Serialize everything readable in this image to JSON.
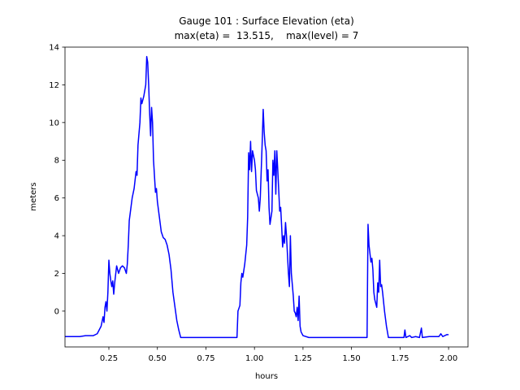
{
  "chart_data": {
    "type": "line",
    "title": "Gauge 101 : Surface Elevation (eta)",
    "subtitle": "max(eta) =  13.515,    max(level) = 7",
    "xlabel": "hours",
    "ylabel": "meters",
    "xlim": [
      0.024,
      2.1
    ],
    "ylim": [
      -1.9,
      14
    ],
    "xticks": [
      0.25,
      {
        "value": 0.5,
        "label": "0.50"
      },
      0.75,
      {
        "value": 1.0,
        "label": "1.00"
      },
      1.25,
      {
        "value": 1.5,
        "label": "1.50"
      },
      1.75,
      {
        "value": 2.0,
        "label": "2.00"
      }
    ],
    "yticks": [
      0,
      2,
      4,
      6,
      8,
      10,
      12,
      14
    ],
    "grid": false,
    "series": [
      {
        "color": "#0000ff",
        "x": [
          0.024,
          0.1,
          0.13,
          0.17,
          0.19,
          0.2,
          0.21,
          0.22,
          0.225,
          0.23,
          0.235,
          0.24,
          0.245,
          0.25,
          0.255,
          0.26,
          0.265,
          0.27,
          0.275,
          0.28,
          0.29,
          0.3,
          0.31,
          0.32,
          0.33,
          0.34,
          0.345,
          0.35,
          0.355,
          0.36,
          0.37,
          0.38,
          0.39,
          0.395,
          0.4,
          0.41,
          0.415,
          0.42,
          0.43,
          0.44,
          0.445,
          0.45,
          0.455,
          0.46,
          0.465,
          0.47,
          0.475,
          0.48,
          0.49,
          0.495,
          0.5,
          0.51,
          0.52,
          0.53,
          0.54,
          0.55,
          0.56,
          0.57,
          0.58,
          0.6,
          0.61,
          0.62,
          0.91,
          0.915,
          0.925,
          0.93,
          0.935,
          0.94,
          0.95,
          0.96,
          0.965,
          0.97,
          0.975,
          0.98,
          0.985,
          0.99,
          1.0,
          1.005,
          1.01,
          1.02,
          1.025,
          1.03,
          1.04,
          1.045,
          1.05,
          1.055,
          1.06,
          1.065,
          1.07,
          1.075,
          1.08,
          1.09,
          1.095,
          1.1,
          1.105,
          1.11,
          1.115,
          1.12,
          1.13,
          1.135,
          1.14,
          1.145,
          1.15,
          1.155,
          1.16,
          1.165,
          1.17,
          1.175,
          1.18,
          1.185,
          1.19,
          1.2,
          1.205,
          1.21,
          1.215,
          1.22,
          1.225,
          1.23,
          1.235,
          1.24,
          1.25,
          1.28,
          1.58,
          1.585,
          1.59,
          1.6,
          1.605,
          1.61,
          1.615,
          1.62,
          1.63,
          1.635,
          1.64,
          1.645,
          1.65,
          1.655,
          1.66,
          1.67,
          1.68,
          1.69,
          1.77,
          1.775,
          1.78,
          1.8,
          1.81,
          1.83,
          1.85,
          1.86,
          1.865,
          1.9,
          1.95,
          1.96,
          1.97,
          1.99,
          2.0
        ],
        "values": [
          -1.35,
          -1.35,
          -1.3,
          -1.3,
          -1.2,
          -1.0,
          -0.8,
          -0.3,
          -0.6,
          0.2,
          0.5,
          0.0,
          1.0,
          2.7,
          2.0,
          1.6,
          1.3,
          1.6,
          0.9,
          1.5,
          2.4,
          2.0,
          2.3,
          2.4,
          2.3,
          2.0,
          2.5,
          3.5,
          4.8,
          5.2,
          6.0,
          6.5,
          7.4,
          7.2,
          8.8,
          10.0,
          11.3,
          11.0,
          11.4,
          12.0,
          13.5,
          13.2,
          12.0,
          10.5,
          9.3,
          10.8,
          10.0,
          8.0,
          6.3,
          6.5,
          5.8,
          5.0,
          4.2,
          3.9,
          3.8,
          3.5,
          3.0,
          2.2,
          1.0,
          -0.5,
          -1.0,
          -1.4,
          -1.4,
          0.0,
          0.3,
          1.5,
          2.0,
          1.8,
          2.5,
          3.5,
          5.0,
          8.4,
          7.5,
          9.0,
          7.4,
          8.5,
          8.0,
          7.5,
          6.4,
          6.0,
          5.3,
          6.0,
          9.0,
          10.7,
          9.5,
          8.8,
          8.5,
          6.9,
          7.5,
          5.5,
          4.6,
          5.3,
          8.0,
          7.2,
          8.5,
          6.2,
          8.5,
          7.5,
          5.3,
          5.5,
          4.5,
          3.4,
          4.0,
          3.6,
          4.7,
          4.0,
          3.0,
          2.0,
          1.3,
          4.0,
          2.0,
          0.8,
          0.0,
          -0.1,
          -0.3,
          0.2,
          -0.5,
          0.8,
          -0.8,
          -1.1,
          -1.3,
          -1.4,
          -1.4,
          4.6,
          3.5,
          2.6,
          2.8,
          2.2,
          1.0,
          0.6,
          0.2,
          1.5,
          1.0,
          2.7,
          1.3,
          1.4,
          1.0,
          0.0,
          -0.8,
          -1.4,
          -1.4,
          -1.0,
          -1.4,
          -1.3,
          -1.4,
          -1.35,
          -1.4,
          -0.9,
          -1.4,
          -1.35,
          -1.35,
          -1.2,
          -1.35,
          -1.25,
          -1.25
        ]
      }
    ]
  }
}
